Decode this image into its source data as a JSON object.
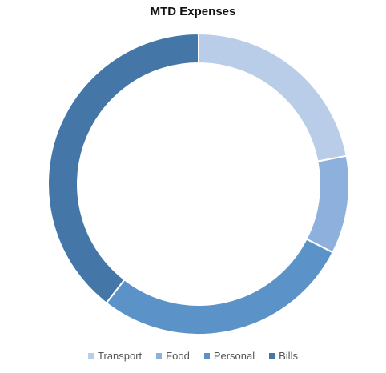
{
  "chart_data": {
    "type": "pie",
    "subtype": "doughnut",
    "title": "MTD Expenses",
    "categories": [
      "Transport",
      "Food",
      "Personal",
      "Bills"
    ],
    "values": [
      22,
      10.5,
      28,
      39.5
    ],
    "unit": "percent",
    "colors": [
      "#b9cde9",
      "#8db1dc",
      "#5b93c9",
      "#4477a8"
    ],
    "legend_position": "bottom"
  }
}
